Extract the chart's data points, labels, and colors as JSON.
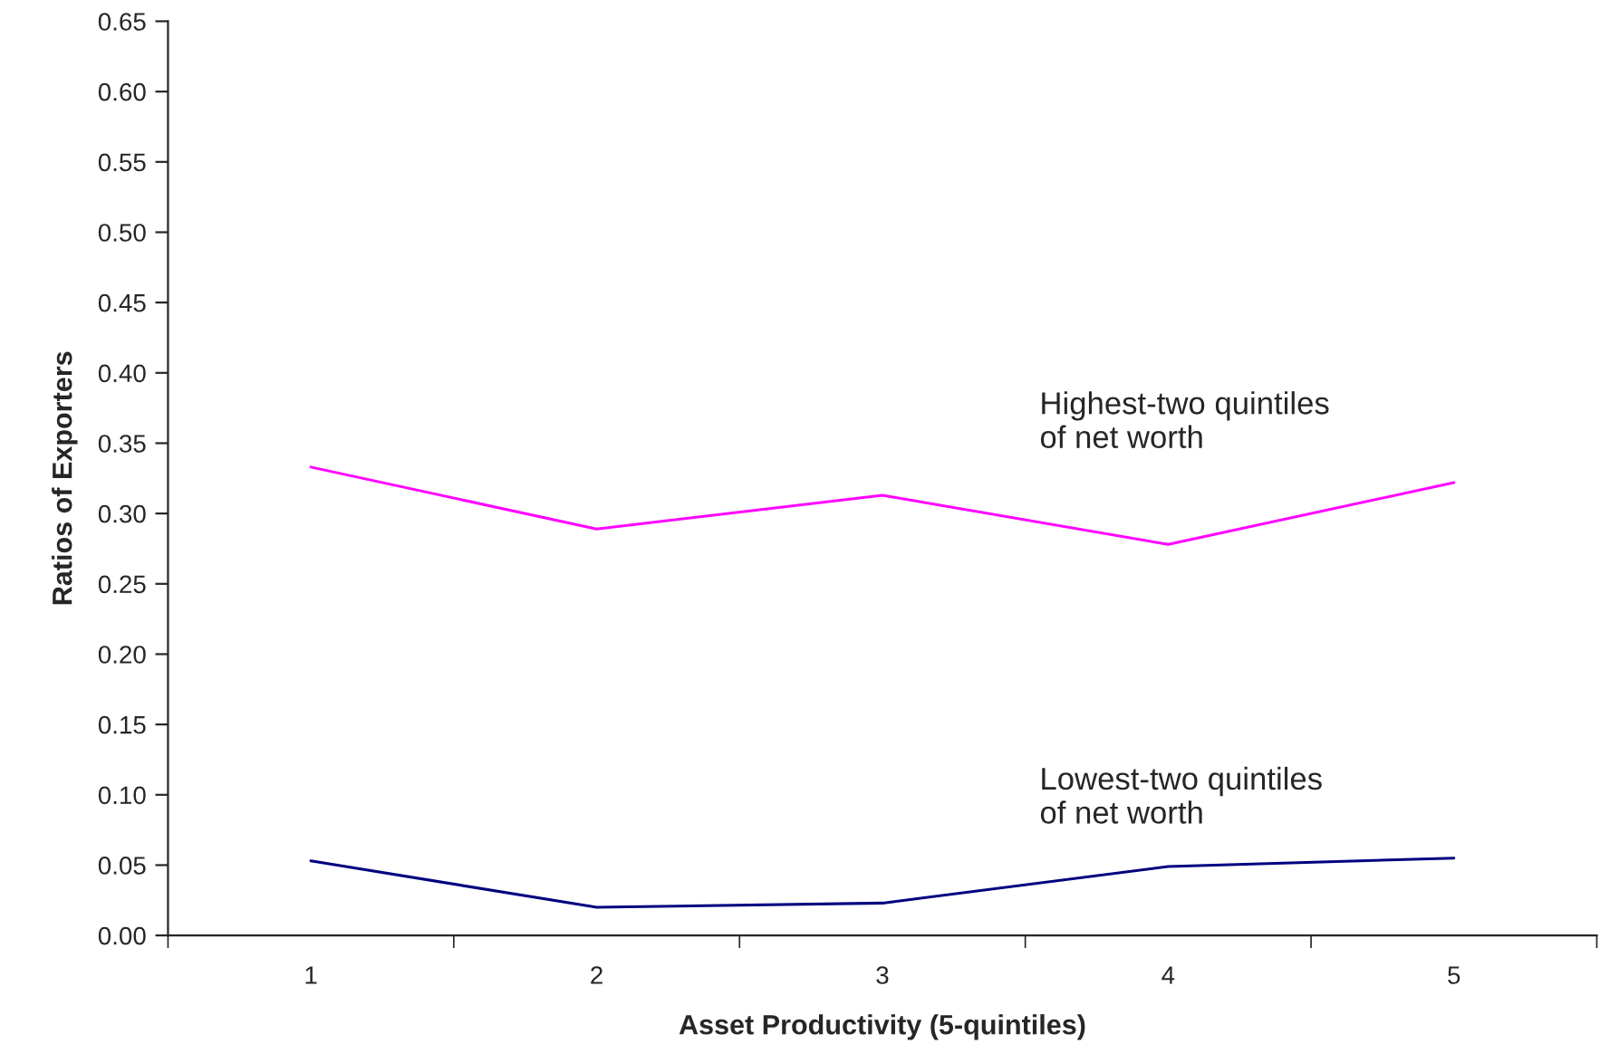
{
  "chart_data": {
    "type": "line",
    "xlabel": "Asset Productivity (5-quintiles)",
    "ylabel": "Ratios of Exporters",
    "categories": [
      "1",
      "2",
      "3",
      "4",
      "5"
    ],
    "series": [
      {
        "name": "Highest-two quintiles\nof net worth",
        "color": "#ff00ff",
        "values": [
          0.333,
          0.289,
          0.313,
          0.278,
          0.322
        ]
      },
      {
        "name": "Lowest-two quintiles\nof net worth",
        "color": "#000080",
        "values": [
          0.053,
          0.02,
          0.023,
          0.049,
          0.055
        ]
      }
    ],
    "ylim": [
      0,
      0.65
    ],
    "yticks": [
      {
        "value": 0,
        "label": "0.00"
      },
      {
        "value": 0.05,
        "label": "0.05"
      },
      {
        "value": 0.1,
        "label": "0.10"
      },
      {
        "value": 0.15,
        "label": "0.15"
      },
      {
        "value": 0.2,
        "label": "0.20"
      },
      {
        "value": 0.25,
        "label": "0.25"
      },
      {
        "value": 0.3,
        "label": "0.30"
      },
      {
        "value": 0.35,
        "label": "0.35"
      },
      {
        "value": 0.4,
        "label": "0.40"
      },
      {
        "value": 0.45,
        "label": "0.45"
      },
      {
        "value": 0.5,
        "label": "0.50"
      },
      {
        "value": 0.55,
        "label": "0.55"
      },
      {
        "value": 0.6,
        "label": "0.60"
      },
      {
        "value": 0.65,
        "label": "0.65"
      }
    ],
    "grid": false,
    "legend": false,
    "marker": "none",
    "line_style": "solid"
  }
}
